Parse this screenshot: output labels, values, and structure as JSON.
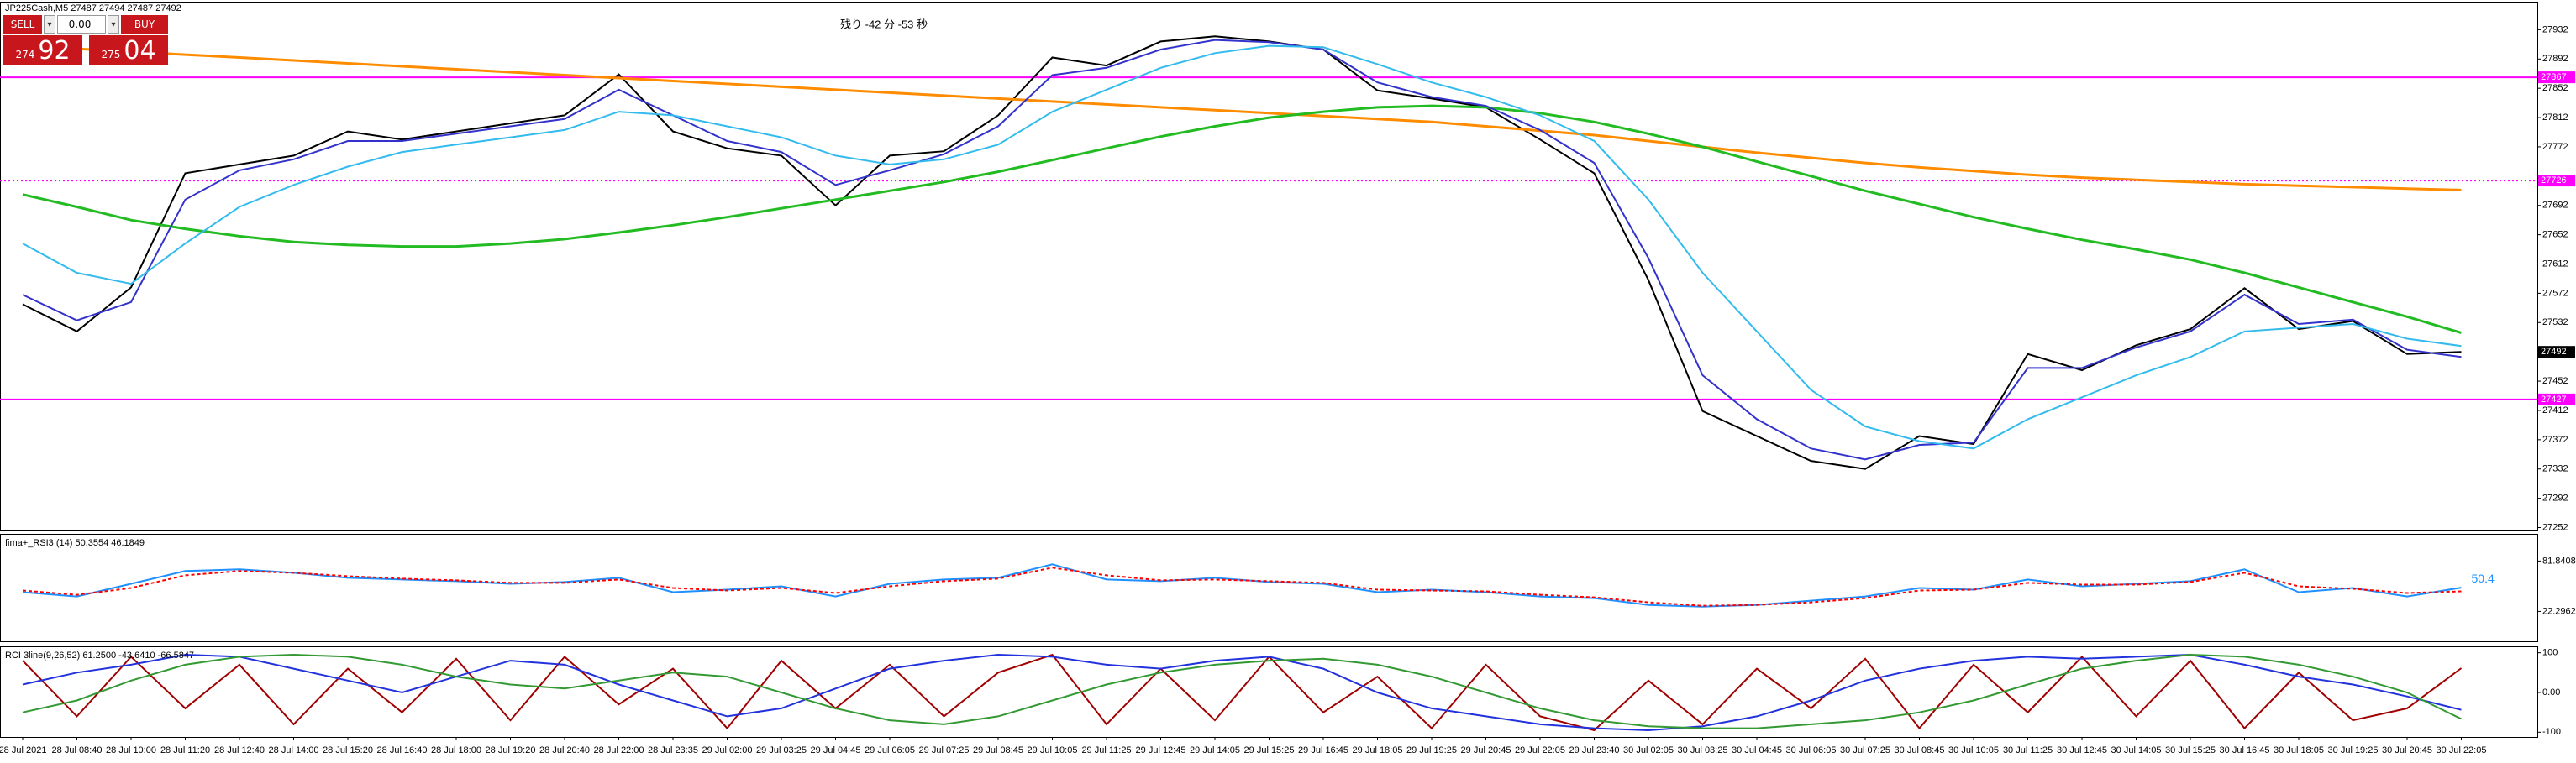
{
  "header": {
    "sell_label": "SELL",
    "buy_label": "BUY",
    "lot": "0.00",
    "sell_price_small": "274",
    "sell_price_big": "92",
    "buy_price_small": "275",
    "buy_price_big": "04"
  },
  "chart_data": [
    {
      "type": "line",
      "title": "JP225Cash,M5  27487 27494 27487 27492",
      "annotation": "残り -42 分 -53 秒",
      "ylim": [
        27248,
        27968
      ],
      "yticks": [
        27932,
        27892,
        27852,
        27812,
        27772,
        27692,
        27652,
        27612,
        27572,
        27532,
        27452,
        27412,
        27372,
        27332,
        27292,
        27252
      ],
      "current_price": 27492,
      "hlines": [
        {
          "value": 27867,
          "color": "#ff00ff",
          "style": "solid"
        },
        {
          "value": 27726,
          "color": "#ff00ff",
          "style": "dotted"
        },
        {
          "value": 27427,
          "color": "#ff00ff",
          "style": "solid"
        }
      ],
      "series": [
        {
          "color": "#000000",
          "width": 2,
          "values": [
            27557,
            27520,
            27580,
            27736,
            27748,
            27760,
            27793,
            27782,
            27793,
            27804,
            27815,
            27871,
            27793,
            27770,
            27760,
            27692,
            27760,
            27766,
            27815,
            27894,
            27883,
            27916,
            27923,
            27916,
            27905,
            27849,
            27838,
            27826,
            27782,
            27736,
            27590,
            27411,
            27377,
            27343,
            27332,
            27377,
            27366,
            27489,
            27467,
            27501,
            27523,
            27579,
            27523,
            27534,
            27489,
            27492
          ]
        },
        {
          "color": "#ff8c00",
          "width": 3,
          "values": [
            27910,
            27906,
            27902,
            27898,
            27894,
            27890,
            27886,
            27882,
            27878,
            27874,
            27870,
            27866,
            27862,
            27858,
            27854,
            27850,
            27846,
            27842,
            27838,
            27834,
            27830,
            27826,
            27822,
            27818,
            27814,
            27810,
            27806,
            27800,
            27794,
            27788,
            27780,
            27772,
            27764,
            27757,
            27750,
            27744,
            27739,
            27734,
            27730,
            27727,
            27724,
            27721,
            27719,
            27717,
            27715,
            27713
          ]
        },
        {
          "color": "#22bb22",
          "width": 3,
          "values": [
            27707,
            27690,
            27672,
            27660,
            27650,
            27642,
            27638,
            27636,
            27636,
            27640,
            27646,
            27655,
            27665,
            27676,
            27688,
            27700,
            27712,
            27724,
            27738,
            27754,
            27770,
            27786,
            27800,
            27812,
            27820,
            27826,
            27828,
            27826,
            27818,
            27806,
            27790,
            27772,
            27752,
            27732,
            27712,
            27694,
            27676,
            27660,
            27645,
            27632,
            27618,
            27600,
            27580,
            27560,
            27540,
            27518
          ]
        },
        {
          "color": "#3333cc",
          "width": 2,
          "values": [
            27570,
            27535,
            27560,
            27700,
            27740,
            27755,
            27780,
            27780,
            27790,
            27800,
            27810,
            27850,
            27815,
            27780,
            27765,
            27720,
            27740,
            27762,
            27800,
            27870,
            27880,
            27905,
            27918,
            27915,
            27905,
            27860,
            27840,
            27828,
            27795,
            27750,
            27620,
            27460,
            27400,
            27360,
            27345,
            27365,
            27368,
            27470,
            27470,
            27498,
            27520,
            27570,
            27530,
            27536,
            27495,
            27485
          ]
        },
        {
          "color": "#33bbee",
          "width": 2,
          "values": [
            27640,
            27600,
            27585,
            27640,
            27690,
            27720,
            27745,
            27765,
            27775,
            27785,
            27795,
            27820,
            27815,
            27800,
            27785,
            27760,
            27748,
            27755,
            27775,
            27820,
            27850,
            27880,
            27900,
            27910,
            27908,
            27885,
            27860,
            27840,
            27815,
            27780,
            27700,
            27600,
            27520,
            27440,
            27390,
            27370,
            27360,
            27400,
            27430,
            27460,
            27485,
            27520,
            27525,
            27530,
            27510,
            27500
          ]
        }
      ]
    },
    {
      "type": "line",
      "title": "fima+_RSI3 (14) 50.3554 46.1849",
      "ylim": [
        -13,
        112
      ],
      "yticks": [
        81.8408,
        22.2962
      ],
      "series": [
        {
          "color": "#1e90ff",
          "width": 2,
          "last_value_label": true,
          "values": [
            45,
            40,
            55,
            70,
            72,
            68,
            62,
            60,
            58,
            55,
            57,
            62,
            45,
            48,
            52,
            40,
            55,
            60,
            62,
            78,
            60,
            58,
            62,
            57,
            55,
            45,
            48,
            45,
            40,
            38,
            30,
            28,
            30,
            35,
            40,
            50,
            48,
            60,
            52,
            55,
            58,
            72,
            45,
            50,
            40,
            50.4
          ]
        },
        {
          "color": "#ff0000",
          "width": 2,
          "dash": true,
          "values": [
            47,
            42,
            50,
            65,
            70,
            68,
            64,
            61,
            59,
            56,
            56,
            60,
            50,
            47,
            50,
            44,
            52,
            58,
            61,
            74,
            65,
            59,
            60,
            58,
            56,
            48,
            47,
            46,
            42,
            39,
            33,
            29,
            30,
            33,
            38,
            47,
            48,
            56,
            54,
            54,
            57,
            68,
            52,
            49,
            44,
            46
          ]
        }
      ]
    },
    {
      "type": "line",
      "title": "RCI 3line(9,26,52) 61.2500 -43.6410 -66.5847",
      "ylim": [
        -112,
        112
      ],
      "yticks": [
        100,
        {
          "value": 0,
          "label": "0.00"
        },
        -100
      ],
      "categories": [
        "28 Jul 2021",
        "28 Jul 08:40",
        "28 Jul 10:00",
        "28 Jul 11:20",
        "28 Jul 12:40",
        "28 Jul 14:00",
        "28 Jul 15:20",
        "28 Jul 16:40",
        "28 Jul 18:00",
        "28 Jul 19:20",
        "28 Jul 20:40",
        "28 Jul 22:00",
        "28 Jul 23:35",
        "29 Jul 02:00",
        "29 Jul 03:25",
        "29 Jul 04:45",
        "29 Jul 06:05",
        "29 Jul 07:25",
        "29 Jul 08:45",
        "29 Jul 10:05",
        "29 Jul 11:25",
        "29 Jul 12:45",
        "29 Jul 14:05",
        "29 Jul 15:25",
        "29 Jul 16:45",
        "29 Jul 18:05",
        "29 Jul 19:25",
        "29 Jul 20:45",
        "29 Jul 22:05",
        "29 Jul 23:40",
        "30 Jul 02:05",
        "30 Jul 03:25",
        "30 Jul 04:45",
        "30 Jul 06:05",
        "30 Jul 07:25",
        "30 Jul 08:45",
        "30 Jul 10:05",
        "30 Jul 11:25",
        "30 Jul 12:45",
        "30 Jul 14:05",
        "30 Jul 15:25",
        "30 Jul 16:45",
        "30 Jul 18:05",
        "30 Jul 19:25",
        "30 Jul 20:45",
        "30 Jul 22:05"
      ],
      "series": [
        {
          "color": "#a00000",
          "width": 2,
          "values": [
            80,
            -60,
            90,
            -40,
            70,
            -80,
            60,
            -50,
            85,
            -70,
            90,
            -30,
            60,
            -90,
            80,
            -40,
            70,
            -60,
            50,
            95,
            -80,
            60,
            -70,
            90,
            -50,
            40,
            -90,
            70,
            -60,
            -95,
            30,
            -80,
            60,
            -40,
            85,
            -90,
            70,
            -50,
            90,
            -60,
            80,
            -90,
            50,
            -70,
            -40,
            61.25
          ]
        },
        {
          "color": "#2233dd",
          "width": 2,
          "values": [
            20,
            50,
            70,
            95,
            90,
            60,
            30,
            0,
            40,
            80,
            70,
            20,
            -20,
            -60,
            -40,
            10,
            60,
            80,
            95,
            90,
            70,
            60,
            80,
            90,
            60,
            0,
            -40,
            -60,
            -80,
            -90,
            -95,
            -85,
            -60,
            -20,
            30,
            60,
            80,
            90,
            85,
            90,
            95,
            70,
            40,
            20,
            -10,
            -43.641
          ]
        },
        {
          "color": "#339933",
          "width": 2,
          "values": [
            -50,
            -20,
            30,
            70,
            90,
            95,
            90,
            70,
            40,
            20,
            10,
            30,
            50,
            40,
            0,
            -40,
            -70,
            -80,
            -60,
            -20,
            20,
            50,
            70,
            80,
            85,
            70,
            40,
            0,
            -40,
            -70,
            -85,
            -90,
            -90,
            -80,
            -70,
            -50,
            -20,
            20,
            60,
            80,
            95,
            90,
            70,
            40,
            0,
            -66.5847
          ]
        }
      ]
    }
  ]
}
